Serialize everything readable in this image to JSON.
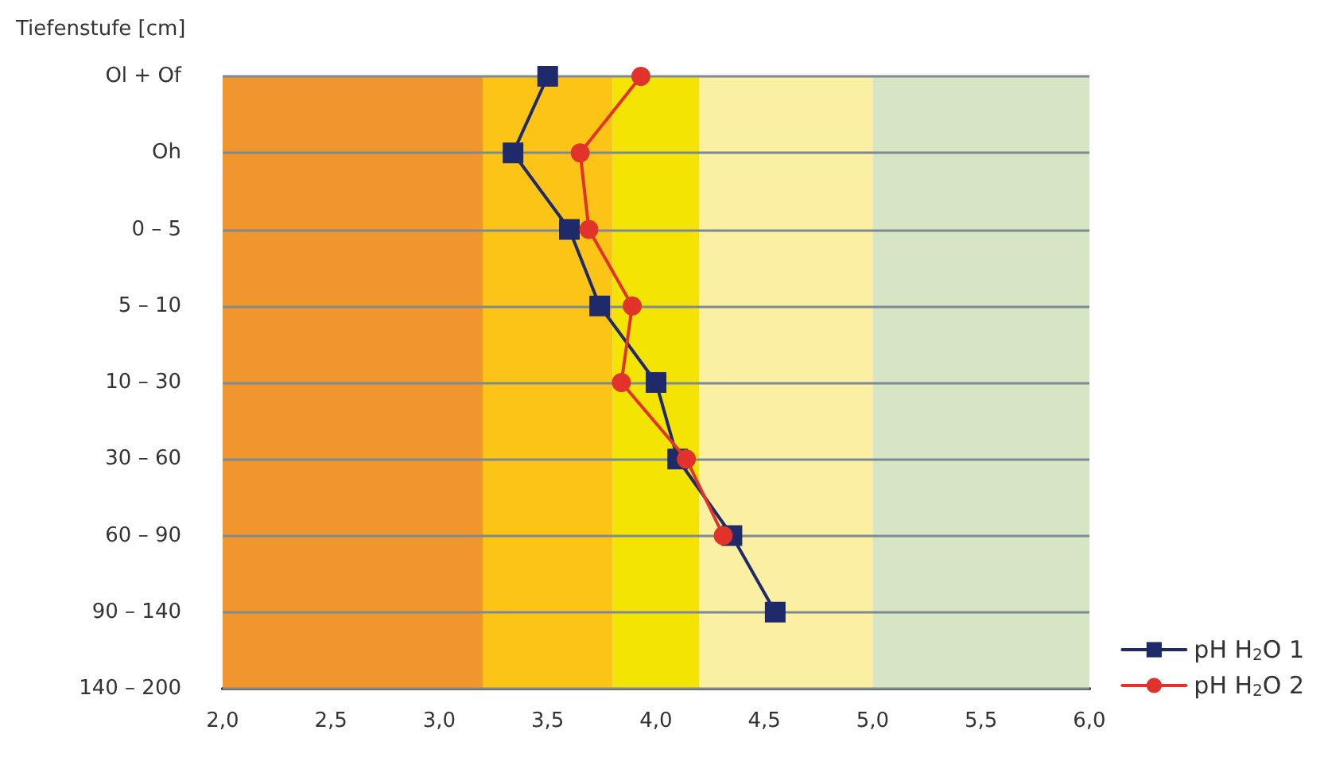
{
  "chart_data": {
    "type": "line",
    "orientation": "horizontal",
    "ylabel": "Tiefenstufe [cm]",
    "categories": [
      "Ol + Of",
      "Oh",
      "0 – 5",
      "5 – 10",
      "10 – 30",
      "30 – 60",
      "60 – 90",
      "90 – 140",
      "140 – 200"
    ],
    "series": [
      {
        "name": "pH H$_{2}$O 1",
        "color": "#1f2a6b",
        "marker": "square",
        "values": [
          3.5,
          3.34,
          3.6,
          3.74,
          4.0,
          4.1,
          4.35,
          4.55,
          null
        ]
      },
      {
        "name": "pH H$_{2}$O 2",
        "color": "#e2332b",
        "marker": "circle",
        "values": [
          3.93,
          3.65,
          3.69,
          3.89,
          3.84,
          4.14,
          4.31,
          null,
          null
        ]
      }
    ],
    "xlim": [
      2,
      6
    ],
    "xticks": [
      {
        "value": 2,
        "label": "2,0"
      },
      {
        "value": 2.5,
        "label": "2,5"
      },
      {
        "value": 3,
        "label": "3,0"
      },
      {
        "value": 3.5,
        "label": "3,5"
      },
      {
        "value": 4,
        "label": "4,0"
      },
      {
        "value": 4.5,
        "label": "4,5"
      },
      {
        "value": 5,
        "label": "5,0"
      },
      {
        "value": 5.5,
        "label": "5,5"
      },
      {
        "value": 6,
        "label": "6,0"
      }
    ],
    "bands": [
      {
        "axis": "x",
        "from": 2,
        "to": 3.2,
        "color": "#f0962c"
      },
      {
        "axis": "x",
        "from": 3.2,
        "to": 3.8,
        "color": "#fdc418"
      },
      {
        "axis": "x",
        "from": 3.8,
        "to": 4.2,
        "color": "#f4e404"
      },
      {
        "axis": "x",
        "from": 4.2,
        "to": 5,
        "color": "#fbf0a2"
      },
      {
        "axis": "x",
        "from": 5,
        "to": 6,
        "color": "#d6e5c4"
      }
    ],
    "grid": "y",
    "legend": "bottom right",
    "line_style": "solid"
  }
}
